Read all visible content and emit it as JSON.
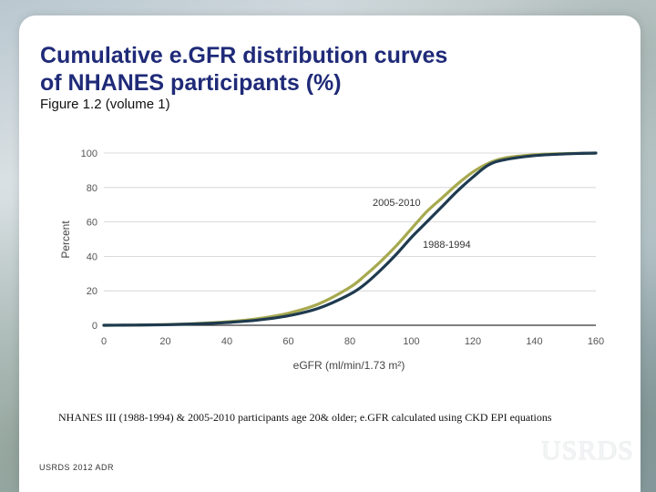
{
  "slide": {
    "title": "Cumulative e.GFR distribution curves\nof NHANES  participants (%)",
    "subtitle": "Figure 1.2 (volume 1)",
    "caption": "NHANES III (1988-1994) & 2005-2010 participants age 20& older; e.GFR calculated using CKD EPI equations",
    "footer": "USRDS 2012 ADR",
    "logo": "USRDS"
  },
  "chart_data": {
    "type": "line",
    "xlabel": "eGFR (ml/min/1.73 m²)",
    "ylabel": "Percent",
    "xlim": [
      0,
      160
    ],
    "ylim": [
      0,
      100
    ],
    "xticks": [
      0,
      20,
      40,
      60,
      80,
      100,
      120,
      140,
      160
    ],
    "yticks": [
      0,
      20,
      40,
      60,
      80,
      100
    ],
    "grid": "horizontal",
    "series": [
      {
        "name": "1988-1994",
        "color": "#1e3a4f",
        "x": [
          0,
          10,
          20,
          30,
          40,
          50,
          60,
          70,
          80,
          85,
          90,
          95,
          100,
          105,
          110,
          115,
          120,
          125,
          130,
          140,
          150,
          160
        ],
        "values": [
          0,
          0.1,
          0.3,
          0.8,
          1.6,
          3,
          5.5,
          10,
          18,
          24,
          32,
          41,
          51,
          60,
          69,
          78,
          86,
          93,
          96,
          98.5,
          99.5,
          100
        ]
      },
      {
        "name": "2005-2010",
        "color": "#a7a94f",
        "x": [
          0,
          10,
          20,
          30,
          40,
          50,
          60,
          70,
          80,
          85,
          90,
          95,
          100,
          105,
          110,
          115,
          120,
          125,
          130,
          140,
          150,
          160
        ],
        "values": [
          0,
          0.1,
          0.4,
          1,
          2,
          3.8,
          7,
          12.5,
          22,
          29,
          37,
          46,
          56,
          66,
          74,
          82,
          89,
          94,
          97,
          99,
          99.7,
          100
        ]
      }
    ]
  }
}
